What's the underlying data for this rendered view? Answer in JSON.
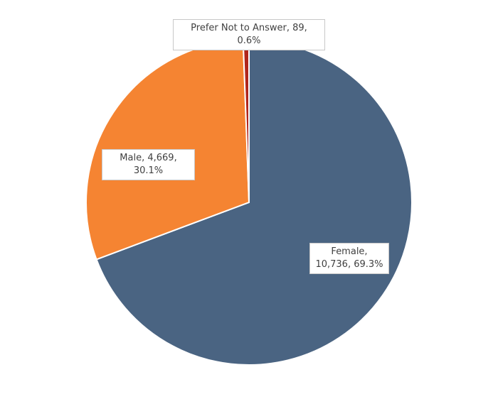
{
  "chart_data": {
    "type": "pie",
    "categories": [
      "Female",
      "Male",
      "Prefer Not to Answer"
    ],
    "values": [
      10736,
      4669,
      89
    ],
    "value_labels": [
      "Female, 10,736, 69.3%",
      "Male, 4,669, 30.1%",
      "Prefer Not to Answer, 89, 0.6%"
    ],
    "colors": [
      "#4a6482",
      "#f58432",
      "#b0261c"
    ]
  }
}
